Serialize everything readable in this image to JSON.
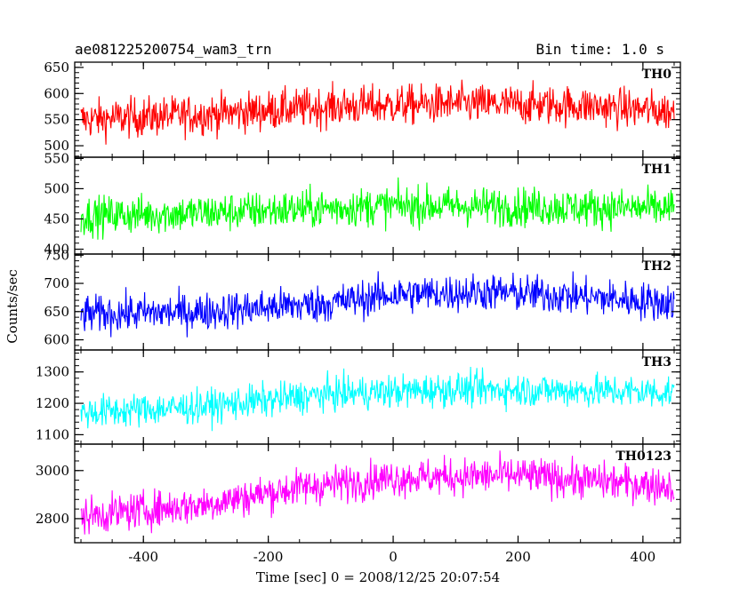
{
  "header": {
    "title": "ae081225200754_wam3_trn",
    "bin_time": "Bin time: 1.0 s"
  },
  "chart_data": {
    "type": "line",
    "xlabel": "Time [sec] 0 = 2008/12/25 20:07:54",
    "ylabel": "Counts/sec",
    "xlim": [
      -510,
      460
    ],
    "x_range": [
      -500,
      450
    ],
    "x_ticks": [
      -400,
      -200,
      0,
      200,
      400
    ],
    "bin_time_s": 1.0,
    "panels": [
      {
        "name": "TH0",
        "color": "#ff0000",
        "ylim": [
          478,
          660
        ],
        "y_ticks": [
          500,
          550,
          600,
          650
        ],
        "baseline": [
          [
            -500,
            550
          ],
          [
            -300,
            560
          ],
          [
            -100,
            575
          ],
          [
            100,
            580
          ],
          [
            300,
            577
          ],
          [
            450,
            565
          ]
        ],
        "noise": 32
      },
      {
        "name": "TH1",
        "color": "#00ff00",
        "ylim": [
          392,
          552
        ],
        "y_ticks": [
          400,
          450,
          500,
          550
        ],
        "baseline": [
          [
            -500,
            455
          ],
          [
            -300,
            460
          ],
          [
            0,
            472
          ],
          [
            200,
            470
          ],
          [
            450,
            467
          ]
        ],
        "noise": 27
      },
      {
        "name": "TH2",
        "color": "#0000ff",
        "ylim": [
          582,
          752
        ],
        "y_ticks": [
          600,
          650,
          700,
          750
        ],
        "baseline": [
          [
            -500,
            645
          ],
          [
            -300,
            650
          ],
          [
            -100,
            665
          ],
          [
            0,
            680
          ],
          [
            150,
            685
          ],
          [
            300,
            677
          ],
          [
            450,
            665
          ]
        ],
        "noise": 28
      },
      {
        "name": "TH3",
        "color": "#00ffff",
        "ylim": [
          1070,
          1370
        ],
        "y_ticks": [
          1100,
          1200,
          1300
        ],
        "baseline": [
          [
            -500,
            1170
          ],
          [
            -300,
            1190
          ],
          [
            -100,
            1230
          ],
          [
            100,
            1245
          ],
          [
            300,
            1240
          ],
          [
            450,
            1235
          ]
        ],
        "noise": 45
      },
      {
        "name": "TH0123",
        "color": "#ff00ff",
        "ylim": [
          2700,
          3110
        ],
        "y_ticks": [
          2800,
          3000
        ],
        "baseline": [
          [
            -500,
            2810
          ],
          [
            -300,
            2860
          ],
          [
            -150,
            2930
          ],
          [
            0,
            2970
          ],
          [
            200,
            2980
          ],
          [
            450,
            2935
          ]
        ],
        "noise": 65
      }
    ]
  }
}
